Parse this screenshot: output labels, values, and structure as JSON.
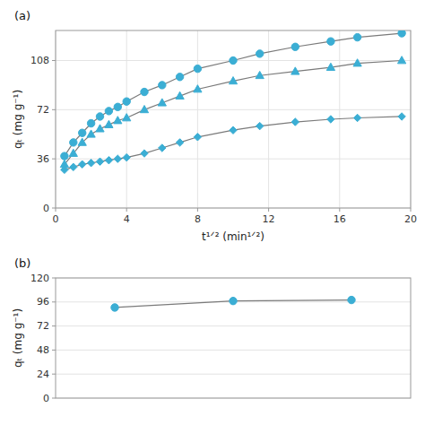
{
  "chart_data": [
    {
      "type": "line",
      "title": "(a)",
      "xlabel": "t¹ᐟ² (min¹ᐟ²)",
      "ylabel": "qₜ (mg g⁻¹)",
      "x": [
        0.5,
        1.0,
        1.5,
        2.0,
        2.5,
        3.0,
        3.5,
        4.0,
        5.0,
        6.0,
        7.0,
        8.0,
        10.0,
        11.5,
        13.5,
        15.5,
        17.0,
        19.5
      ],
      "xlim": [
        0,
        20
      ],
      "xticks": [
        0,
        4,
        8,
        12,
        16,
        20
      ],
      "ylim": [
        0,
        130
      ],
      "yticks": [
        0,
        36,
        72,
        108
      ],
      "grid": true,
      "series": [
        {
          "marker": "circle",
          "color": "#3BAED4",
          "values": [
            38,
            48,
            55,
            62,
            67,
            71,
            74,
            78,
            85,
            90,
            96,
            102,
            108,
            113,
            118,
            122,
            125,
            128
          ]
        },
        {
          "marker": "triangle",
          "color": "#3BAED4",
          "values": [
            32,
            40,
            48,
            54,
            58,
            61,
            64,
            66,
            72,
            77,
            82,
            87,
            93,
            97,
            100,
            103,
            106,
            108
          ]
        },
        {
          "marker": "diamond",
          "color": "#3BAED4",
          "values": [
            28,
            30,
            32,
            33,
            34,
            35,
            36,
            37,
            40,
            44,
            48,
            52,
            57,
            60,
            63,
            65,
            66,
            67
          ]
        }
      ]
    },
    {
      "type": "line",
      "title": "(b)",
      "ylabel": "qₜ (mg g⁻¹)",
      "categories": [
        null,
        null,
        null
      ],
      "ylim": [
        0,
        120
      ],
      "yticks": [
        0,
        24,
        48,
        72,
        96,
        120
      ],
      "grid": true,
      "tick_labels": "y",
      "series": [
        {
          "marker": "circle",
          "color": "#3BAED4",
          "values": [
            90.5,
            97.0,
            98.0
          ]
        }
      ]
    }
  ]
}
